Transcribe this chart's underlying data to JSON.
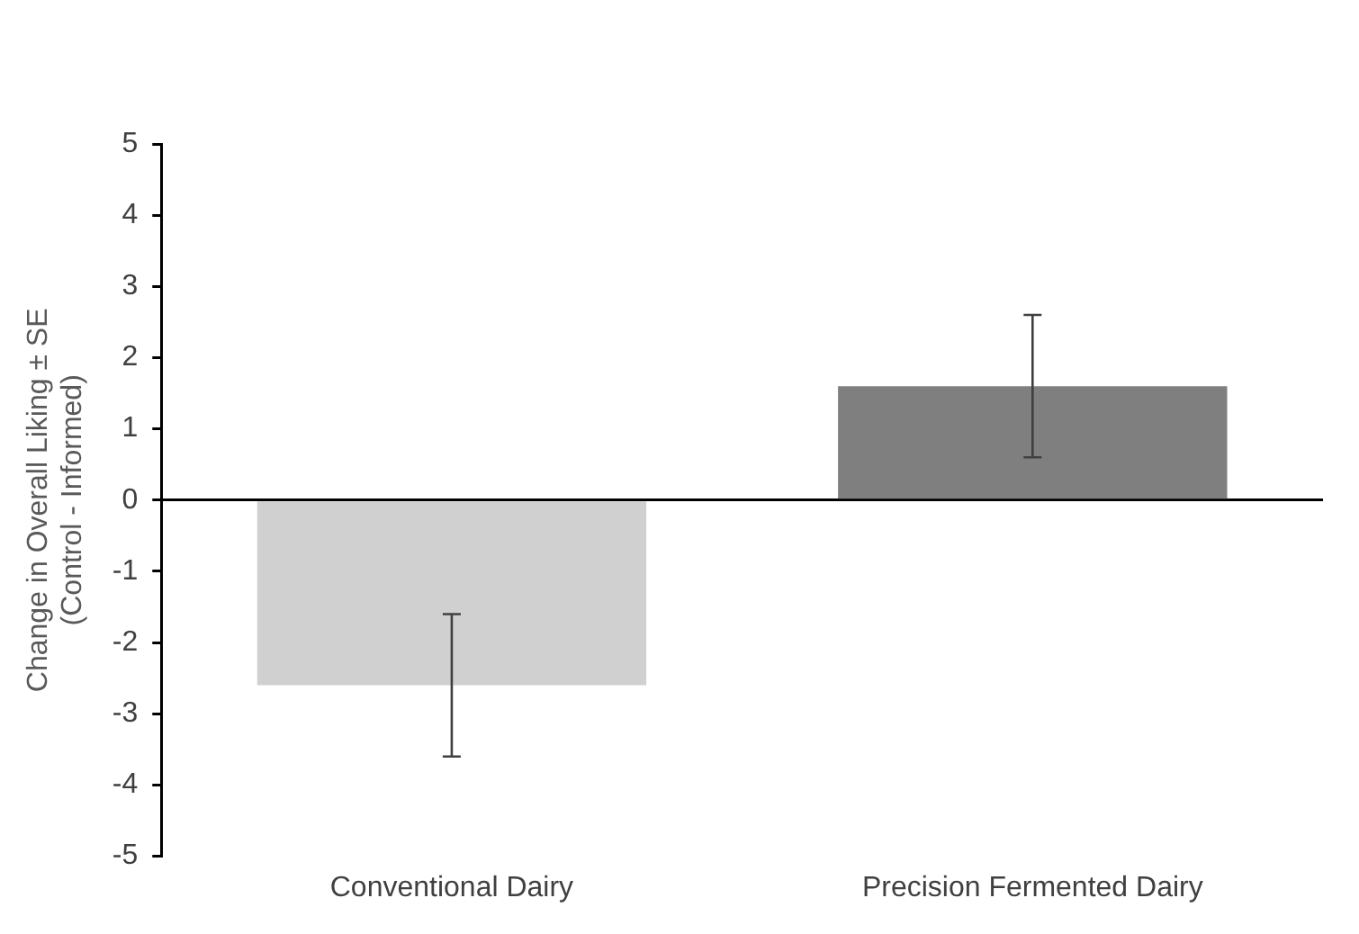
{
  "chart_data": {
    "type": "bar",
    "ylabel": "Change in Overall Liking ± SE\n(Control - Informed)",
    "categories": [
      "Conventional Dairy",
      "Precision Fermented Dairy"
    ],
    "values": [
      -2.6,
      1.6
    ],
    "colors": [
      "#d0d0d0",
      "#7f7f7f"
    ],
    "errors": [
      1.0,
      1.0
    ],
    "ylim": [
      -5,
      5
    ],
    "yticks": [
      -5,
      -4,
      -3,
      -2,
      -1,
      0,
      1,
      2,
      3,
      4,
      5
    ]
  }
}
